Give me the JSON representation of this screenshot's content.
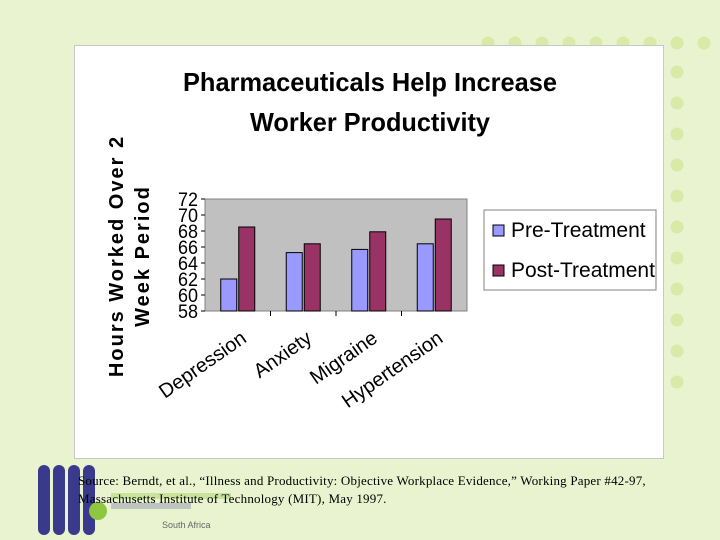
{
  "colors": {
    "pre": "#9999ff",
    "post": "#993366",
    "plot_bg": "#c0c0c0",
    "green_light": "#eaf3cf",
    "green_dot": "#d9e9a8",
    "logo_blue": "#3a3a8c",
    "logo_green": "#8dc63f"
  },
  "chart_data": {
    "type": "bar",
    "title": "Pharmaceuticals Help Increase Worker Productivity",
    "title_lines": [
      "Pharmaceuticals Help Increase",
      "Worker Productivity"
    ],
    "ylabel": "Hours Worked Over 2 Week Period",
    "ylabel_lines": [
      "Hours Worked Over 2",
      "Week Period"
    ],
    "xlabel": "",
    "categories": [
      "Depression",
      "Anxiety",
      "Migraine",
      "Hypertension"
    ],
    "series": [
      {
        "name": "Pre-Treatment",
        "values": [
          62.0,
          65.3,
          65.7,
          66.4
        ]
      },
      {
        "name": "Post-Treatment",
        "values": [
          68.5,
          66.4,
          67.9,
          69.5
        ]
      }
    ],
    "ylim": [
      58,
      72
    ],
    "yticks": [
      "72",
      "70",
      "68",
      "66",
      "64",
      "62",
      "60",
      "58"
    ],
    "grid": false,
    "legend": "right"
  },
  "source_text": "Source: Berndt, et al., “Illness and Productivity: Objective Workplace Evidence,” Working Paper #42-97, Massachusetts Institute of Technology (MIT), May 1997.",
  "logo": {
    "subtext": "South Africa"
  }
}
